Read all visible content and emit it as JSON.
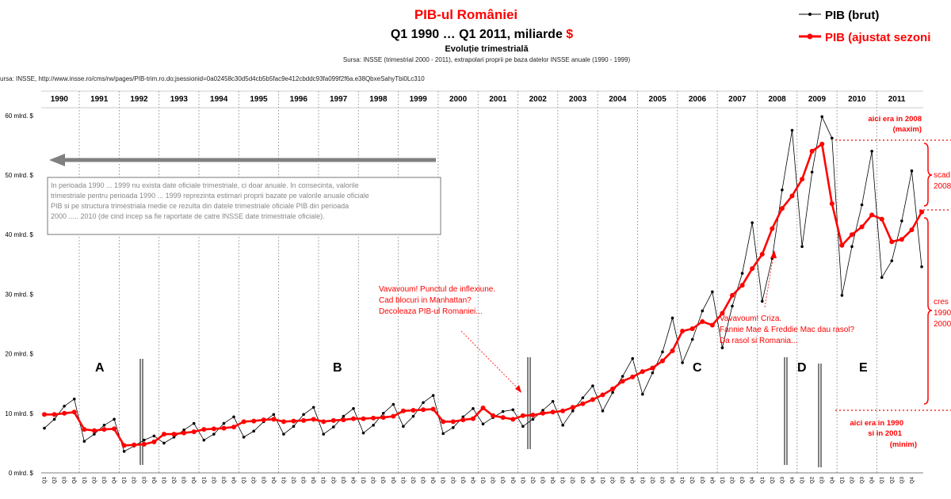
{
  "header": {
    "title": "PIB-ul României",
    "subtitle_text": "Q1 1990 … Q1 2011, miliarde ",
    "subtitle_currency": "$",
    "subtitle2": "Evoluție trimestrială",
    "source_note": "Sursa: INSSE (trimestrial 2000 - 2011), extrapolari proprii pe baza datelor INSSE anuale (1990 - 1999)",
    "source_url": "ursa: INSSE, http://www.insse.ro/cms/rw/pages/PIB-trim.ro.do;jsessionid=0a02458c30d5d4cb5b5fac9e412cbddc93fa099f2f6a.e38QbxeSahyTbi0Lc310"
  },
  "legend": {
    "raw_label": "PIB (brut)",
    "adj_label": "PIB (ajustat sezoni"
  },
  "annotations": {
    "note_box": [
      "In perioada 1990 ... 1999 nu exista date oficiale trimestriale, ci doar anuale. In consecinta, valorile",
      "trimestriale pentru perioada 1990 ... 1999 reprezinta estimari proprii bazate pe valorile anuale oficiale",
      "PIB si pe structura trimestriala medie ce rezulta din datele trimestriale oficiale PIB din perioada",
      "2000 ..... 2010 (de cind incep sa fie raportate de catre INSSE date trimestriale oficiale)."
    ],
    "inflexion": [
      "Vavavoum! Punctul de inflexiune.",
      "Cad blocuri in Manhattan?",
      "Decoleaza PIB-ul Romaniei..."
    ],
    "crisis": [
      "Vavavoum! Criza.",
      "Fannie Mae & Freddie Mac dau rasol?",
      "Da rasol si Romania..."
    ],
    "max_note": [
      "aici era in 2008",
      "(maxim)"
    ],
    "min_note": [
      "aici era in 1990",
      "si in 2001",
      "(minim)"
    ],
    "side_top": [
      "scad",
      "2008"
    ],
    "side_bottom": [
      "cres",
      "1990",
      "2000"
    ],
    "letters": [
      "A",
      "B",
      "C",
      "D",
      "E"
    ]
  },
  "colors": {
    "raw": "#000000",
    "adjusted": "#ff0000",
    "arrow": "#808080",
    "accent": "#ff0000"
  },
  "chart_data": {
    "type": "line",
    "title": "PIB-ul României",
    "ylabel": "",
    "yticks": [
      "0 mlrd. $",
      "10 mlrd. $",
      "20 mlrd. $",
      "30 mlrd. $",
      "40 mlrd. $",
      "50 mlrd. $",
      "60 mlrd. $"
    ],
    "ylim": [
      0,
      60
    ],
    "years": [
      "1990",
      "1991",
      "1992",
      "1993",
      "1994",
      "1995",
      "1996",
      "1997",
      "1998",
      "1999",
      "2000",
      "2001",
      "2002",
      "2003",
      "2004",
      "2005",
      "2006",
      "2007",
      "2008",
      "2009",
      "2010",
      "2011"
    ],
    "quarter_labels": [
      "Q1",
      "Q2",
      "Q3",
      "Q4"
    ],
    "grid": "vertical dotted year separators",
    "legend_position": "top-right",
    "series": [
      {
        "name": "PIB (brut)",
        "values": [
          7.5,
          9,
          11.2,
          12.4,
          5.3,
          6.5,
          8,
          9,
          3.6,
          4.5,
          5.5,
          6.2,
          5,
          6,
          7.2,
          8.3,
          5.5,
          6.5,
          8.3,
          9.4,
          6,
          7,
          8.6,
          9.8,
          6.5,
          7.8,
          9.8,
          11,
          6.5,
          7.7,
          9.5,
          10.8,
          6.7,
          8,
          10,
          11.5,
          7.8,
          9.5,
          11.8,
          13,
          6.6,
          7.6,
          9.4,
          10.8,
          8.2,
          9.3,
          10.3,
          10.6,
          7.8,
          9,
          10.5,
          12,
          8,
          10.4,
          12.6,
          14.6,
          10.4,
          13.5,
          16.2,
          19.2,
          13.2,
          16.8,
          20.3,
          26,
          18.5,
          22.4,
          27.2,
          30.4,
          21,
          28,
          33.5,
          42,
          28.8,
          36,
          47.5,
          57.5,
          38,
          50.5,
          59.8,
          56.2,
          29.8,
          38,
          45,
          54,
          32.8,
          35.6,
          42.3,
          50.7,
          34.6
        ],
        "values_note": "Q1 1990 … Q1 2011"
      },
      {
        "name": "PIB (ajustat sezonier)",
        "values": [
          9.8,
          9.8,
          10,
          10.2,
          7.3,
          7.1,
          7.3,
          7.4,
          4.6,
          4.7,
          4.8,
          5.2,
          6.5,
          6.5,
          6.7,
          6.9,
          7.3,
          7.4,
          7.5,
          7.7,
          8.6,
          8.7,
          8.9,
          9,
          8.6,
          8.7,
          8.8,
          9,
          8.6,
          8.8,
          8.9,
          9.1,
          9.1,
          9.2,
          9.3,
          9.5,
          10.4,
          10.5,
          10.6,
          10.7,
          8.6,
          8.6,
          8.9,
          9.1,
          10.9,
          9.6,
          9.3,
          9,
          9.6,
          9.7,
          10,
          10.2,
          10.4,
          11,
          11.6,
          12.3,
          13.1,
          14.1,
          15.4,
          16.1,
          17,
          17.6,
          18.8,
          20.5,
          23.8,
          24.2,
          25.4,
          24.8,
          26.8,
          29.8,
          31.5,
          34.3,
          36.7,
          41,
          44.4,
          46.5,
          49.3,
          54,
          55.2,
          45.2,
          38.2,
          40,
          41.3,
          43.3,
          42.6,
          38.8,
          39.2,
          40.8,
          43.8
        ]
      }
    ]
  }
}
